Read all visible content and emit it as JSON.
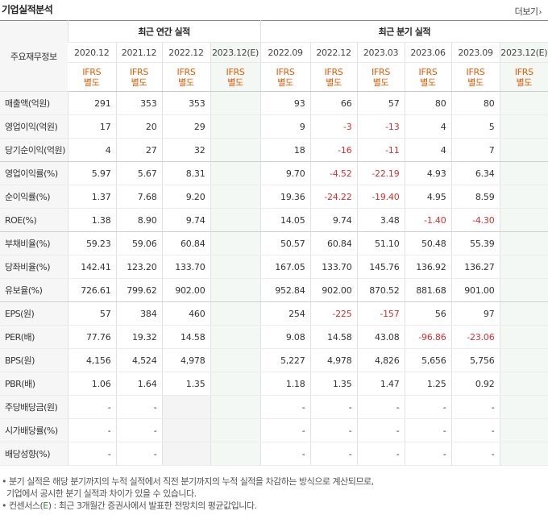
{
  "header": {
    "title": "기업실적분석",
    "more_label": "더보기",
    "more_icon": "chevron-right-icon"
  },
  "table": {
    "corner_label": "주요재무정보",
    "group_annual": "최근 연간 실적",
    "group_quarter": "최근 분기 실적",
    "periods": [
      "2020.12",
      "2021.12",
      "2022.12",
      "2023.12(E)",
      "2022.09",
      "2022.12",
      "2023.03",
      "2023.06",
      "2023.09",
      "2023.12(E)"
    ],
    "ifrs": [
      {
        "a": "IFRS",
        "b": "별도"
      },
      {
        "a": "IFRS",
        "b": "별도"
      },
      {
        "a": "IFRS",
        "b": "별도"
      },
      {
        "a": "IFRS",
        "b": "별도"
      },
      {
        "a": "IFRS",
        "b": "별도"
      },
      {
        "a": "IFRS",
        "b": "별도"
      },
      {
        "a": "IFRS",
        "b": "별도"
      },
      {
        "a": "IFRS",
        "b": "별도"
      },
      {
        "a": "IFRS",
        "b": "별도"
      },
      {
        "a": "IFRS",
        "b": "별도"
      }
    ],
    "rows": [
      {
        "label": "매출액(억원)",
        "values": [
          "291",
          "353",
          "353",
          "",
          "93",
          "66",
          "57",
          "80",
          "80",
          ""
        ]
      },
      {
        "label": "영업이익(억원)",
        "values": [
          "17",
          "20",
          "29",
          "",
          "9",
          "-3",
          "-13",
          "4",
          "5",
          ""
        ]
      },
      {
        "label": "당기순이익(억원)",
        "values": [
          "4",
          "27",
          "32",
          "",
          "18",
          "-16",
          "-11",
          "4",
          "7",
          ""
        ]
      },
      {
        "label": "영업이익률(%)",
        "values": [
          "5.97",
          "5.67",
          "8.31",
          "",
          "9.70",
          "-4.52",
          "-22.19",
          "4.93",
          "6.34",
          ""
        ]
      },
      {
        "label": "순이익률(%)",
        "values": [
          "1.37",
          "7.68",
          "9.20",
          "",
          "19.36",
          "-24.22",
          "-19.40",
          "4.95",
          "8.59",
          ""
        ]
      },
      {
        "label": "ROE(%)",
        "values": [
          "1.38",
          "8.90",
          "9.74",
          "",
          "14.05",
          "9.74",
          "3.48",
          "-1.40",
          "-4.30",
          ""
        ]
      },
      {
        "label": "부채비율(%)",
        "values": [
          "59.23",
          "59.06",
          "60.84",
          "",
          "50.57",
          "60.84",
          "51.10",
          "50.48",
          "55.39",
          ""
        ]
      },
      {
        "label": "당좌비율(%)",
        "values": [
          "142.41",
          "123.20",
          "133.70",
          "",
          "167.05",
          "133.70",
          "145.76",
          "136.92",
          "136.27",
          ""
        ]
      },
      {
        "label": "유보율(%)",
        "values": [
          "726.61",
          "799.62",
          "902.00",
          "",
          "952.84",
          "902.00",
          "870.52",
          "881.68",
          "901.00",
          ""
        ]
      },
      {
        "label": "EPS(원)",
        "values": [
          "57",
          "384",
          "460",
          "",
          "254",
          "-225",
          "-157",
          "56",
          "97",
          ""
        ]
      },
      {
        "label": "PER(배)",
        "values": [
          "77.76",
          "19.32",
          "14.58",
          "",
          "9.08",
          "14.58",
          "43.08",
          "-96.86",
          "-23.06",
          ""
        ]
      },
      {
        "label": "BPS(원)",
        "values": [
          "4,156",
          "4,524",
          "4,978",
          "",
          "5,227",
          "4,978",
          "4,826",
          "5,656",
          "5,756",
          ""
        ]
      },
      {
        "label": "PBR(배)",
        "values": [
          "1.06",
          "1.64",
          "1.35",
          "",
          "1.18",
          "1.35",
          "1.47",
          "1.25",
          "0.92",
          ""
        ]
      },
      {
        "label": "주당배당금(원)",
        "values": [
          "-",
          "-",
          "",
          "",
          "-",
          "-",
          "-",
          "-",
          "-",
          ""
        ]
      },
      {
        "label": "시가배당률(%)",
        "values": [
          "-",
          "-",
          "",
          "",
          "-",
          "-",
          "-",
          "-",
          "-",
          ""
        ]
      },
      {
        "label": "배당성향(%)",
        "values": [
          "-",
          "-",
          "",
          "",
          "-",
          "-",
          "-",
          "-",
          "-",
          ""
        ]
      }
    ],
    "separators_after": [
      2,
      5,
      8
    ]
  },
  "notes": {
    "line1": "• 분기 실적은 해당 분기까지의 누적 실적에서 직전 분기까지의 누적 실적을 차감하는 방식으로 계산되므로,",
    "line2": "기업에서 공시한 분기 실적과 차이가 있을 수 있습니다.",
    "line3_a": "• 컨센서스(",
    "line3_e": "E",
    "line3_b": ") : 최근 3개월간 증권사에서 발표한 전망치의 평균값입니다."
  }
}
